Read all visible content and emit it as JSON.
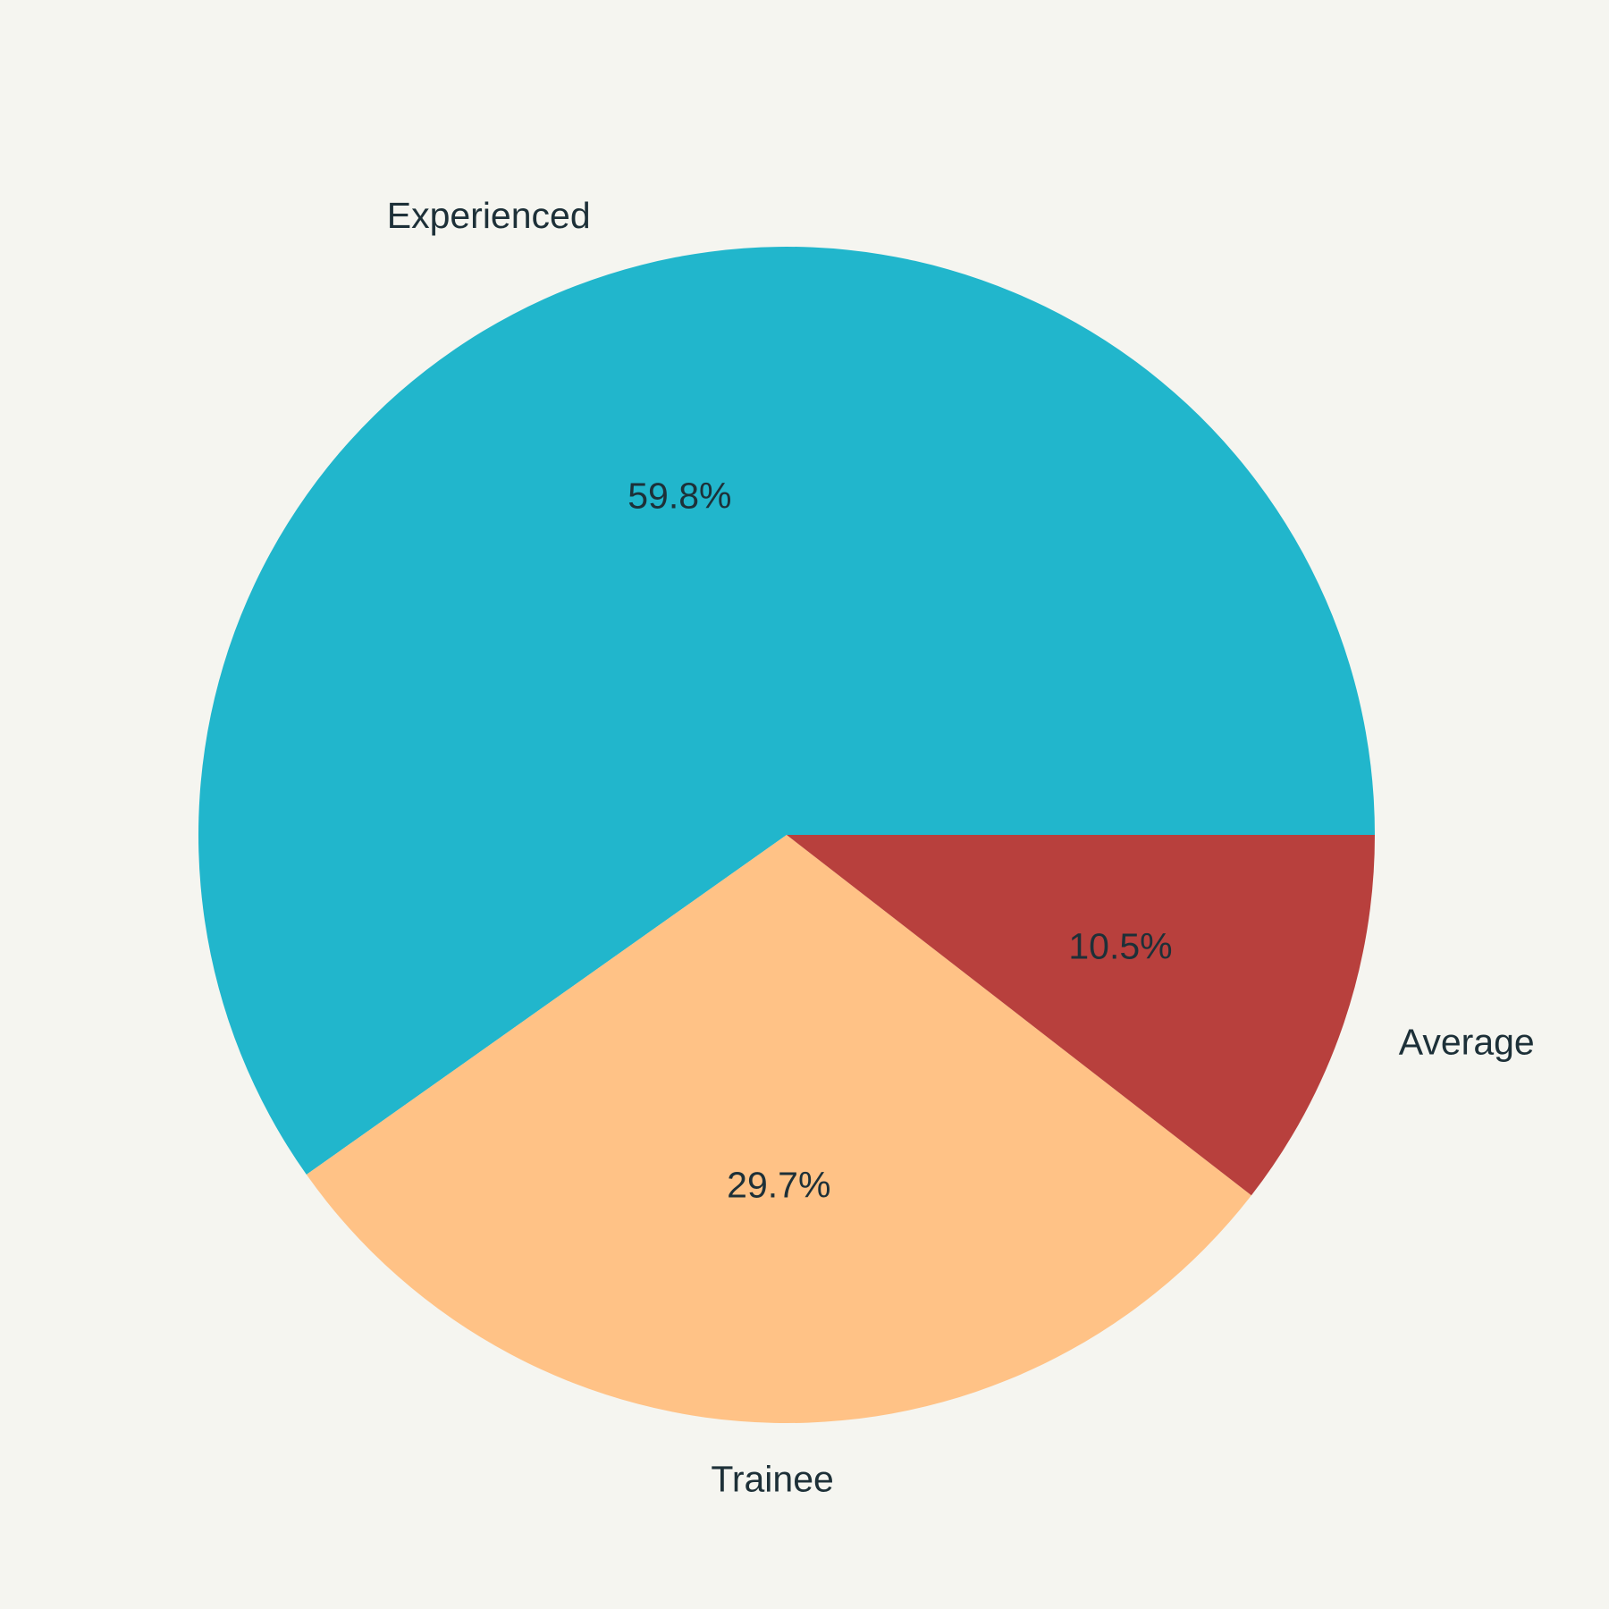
{
  "chart_data": {
    "type": "pie",
    "categories": [
      "Experienced",
      "Trainee",
      "Average"
    ],
    "values": [
      59.8,
      29.7,
      10.5
    ],
    "value_labels": [
      "59.8%",
      "29.7%",
      "10.5%"
    ],
    "colors": [
      "#21b6cc",
      "#ffc286",
      "#b8403d"
    ],
    "text_color": "#1d3038",
    "background": "#f5f5f0",
    "start_angle_deg": 0,
    "direction": "counterclockwise"
  }
}
